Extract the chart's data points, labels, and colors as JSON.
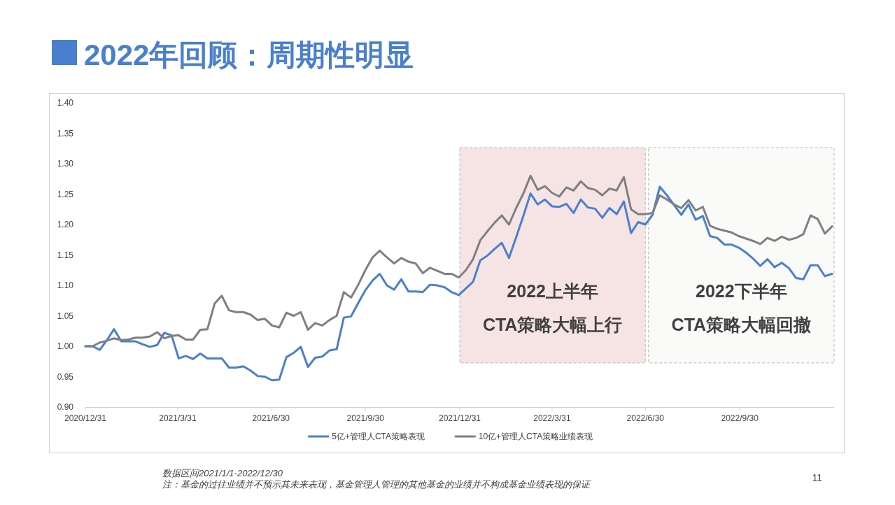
{
  "chart_data": {
    "type": "line",
    "title": "2022年回顾：周期性明显",
    "x": [
      "2020-12-31",
      "2021-01-07",
      "2021-01-14",
      "2021-01-21",
      "2021-01-28",
      "2021-02-04",
      "2021-02-11",
      "2021-02-18",
      "2021-02-25",
      "2021-03-04",
      "2021-03-11",
      "2021-03-18",
      "2021-03-25",
      "2021-04-01",
      "2021-04-08",
      "2021-04-15",
      "2021-04-22",
      "2021-04-29",
      "2021-05-06",
      "2021-05-13",
      "2021-05-20",
      "2021-05-27",
      "2021-06-03",
      "2021-06-10",
      "2021-06-17",
      "2021-06-24",
      "2021-07-01",
      "2021-07-08",
      "2021-07-15",
      "2021-07-22",
      "2021-07-29",
      "2021-08-05",
      "2021-08-12",
      "2021-08-19",
      "2021-08-26",
      "2021-09-02",
      "2021-09-09",
      "2021-09-16",
      "2021-09-23",
      "2021-09-30",
      "2021-10-07",
      "2021-10-14",
      "2021-10-21",
      "2021-10-28",
      "2021-11-04",
      "2021-11-11",
      "2021-11-18",
      "2021-11-25",
      "2021-12-02",
      "2021-12-09",
      "2021-12-16",
      "2021-12-23",
      "2021-12-30",
      "2022-01-06",
      "2022-01-13",
      "2022-01-20",
      "2022-01-27",
      "2022-02-03",
      "2022-02-10",
      "2022-02-17",
      "2022-02-24",
      "2022-03-03",
      "2022-03-10",
      "2022-03-17",
      "2022-03-24",
      "2022-03-31",
      "2022-04-07",
      "2022-04-14",
      "2022-04-21",
      "2022-04-28",
      "2022-05-05",
      "2022-05-12",
      "2022-05-19",
      "2022-05-26",
      "2022-06-02",
      "2022-06-09",
      "2022-06-16",
      "2022-06-23",
      "2022-06-30",
      "2022-07-07",
      "2022-07-14",
      "2022-07-21",
      "2022-07-28",
      "2022-08-04",
      "2022-08-11",
      "2022-08-18",
      "2022-08-25",
      "2022-09-01",
      "2022-09-08",
      "2022-09-15",
      "2022-09-22",
      "2022-09-29",
      "2022-10-06",
      "2022-10-13",
      "2022-10-20",
      "2022-10-27",
      "2022-11-03",
      "2022-11-10",
      "2022-11-17",
      "2022-11-24",
      "2022-12-01",
      "2022-12-08",
      "2022-12-15",
      "2022-12-22",
      "2022-12-29"
    ],
    "series": [
      {
        "name": "5亿+管理人CTA策略表现",
        "color": "#4a7fd0",
        "values": [
          1.0,
          1.0,
          0.994,
          1.01,
          1.028,
          1.008,
          1.008,
          1.008,
          1.003,
          0.999,
          1.002,
          1.022,
          1.018,
          0.98,
          0.984,
          0.979,
          0.988,
          0.98,
          0.98,
          0.98,
          0.965,
          0.965,
          0.967,
          0.96,
          0.951,
          0.95,
          0.944,
          0.945,
          0.982,
          0.989,
          0.999,
          0.966,
          0.981,
          0.983,
          0.993,
          0.995,
          1.047,
          1.049,
          1.071,
          1.092,
          1.108,
          1.119,
          1.1,
          1.093,
          1.11,
          1.09,
          1.09,
          1.089,
          1.101,
          1.1,
          1.097,
          1.089,
          1.084,
          1.095,
          1.106,
          1.141,
          1.149,
          1.16,
          1.17,
          1.145,
          1.179,
          1.214,
          1.251,
          1.233,
          1.241,
          1.23,
          1.229,
          1.234,
          1.219,
          1.241,
          1.228,
          1.226,
          1.211,
          1.227,
          1.217,
          1.238,
          1.186,
          1.204,
          1.2,
          1.216,
          1.262,
          1.248,
          1.232,
          1.216,
          1.233,
          1.208,
          1.214,
          1.181,
          1.178,
          1.167,
          1.167,
          1.162,
          1.154,
          1.144,
          1.132,
          1.143,
          1.13,
          1.137,
          1.128,
          1.112,
          1.11,
          1.133,
          1.133,
          1.115,
          1.119
        ]
      },
      {
        "name": "10亿+管理人CTA策略业绩表现",
        "color": "#7f7f7f",
        "values": [
          1.0,
          1.0,
          1.006,
          1.009,
          1.013,
          1.01,
          1.011,
          1.014,
          1.014,
          1.016,
          1.023,
          1.013,
          1.017,
          1.018,
          1.011,
          1.011,
          1.027,
          1.028,
          1.07,
          1.083,
          1.059,
          1.056,
          1.056,
          1.052,
          1.043,
          1.045,
          1.034,
          1.031,
          1.055,
          1.05,
          1.056,
          1.027,
          1.038,
          1.034,
          1.043,
          1.05,
          1.089,
          1.08,
          1.101,
          1.125,
          1.146,
          1.157,
          1.146,
          1.136,
          1.145,
          1.139,
          1.136,
          1.12,
          1.129,
          1.124,
          1.119,
          1.119,
          1.113,
          1.125,
          1.143,
          1.174,
          1.189,
          1.203,
          1.215,
          1.2,
          1.227,
          1.251,
          1.28,
          1.257,
          1.263,
          1.252,
          1.246,
          1.261,
          1.256,
          1.271,
          1.26,
          1.257,
          1.248,
          1.259,
          1.256,
          1.278,
          1.225,
          1.217,
          1.217,
          1.219,
          1.248,
          1.241,
          1.233,
          1.227,
          1.24,
          1.223,
          1.229,
          1.198,
          1.193,
          1.19,
          1.187,
          1.181,
          1.177,
          1.173,
          1.168,
          1.178,
          1.173,
          1.18,
          1.175,
          1.178,
          1.184,
          1.215,
          1.209,
          1.185,
          1.197
        ]
      }
    ],
    "xlim": [
      "2020-12-31",
      "2022-12-31"
    ],
    "xticks": [
      {
        "value": "2020-12-31",
        "label": "2020/12/31"
      },
      {
        "value": "2021-03-31",
        "label": "2021/3/31"
      },
      {
        "value": "2021-06-30",
        "label": "2021/6/30"
      },
      {
        "value": "2021-09-30",
        "label": "2021/9/30"
      },
      {
        "value": "2021-12-31",
        "label": "2021/12/31"
      },
      {
        "value": "2022-03-31",
        "label": "2022/3/31"
      },
      {
        "value": "2022-06-30",
        "label": "2022/6/30"
      },
      {
        "value": "2022-09-30",
        "label": "2022/9/30"
      }
    ],
    "ylim": [
      0.9,
      1.4
    ],
    "yticks": [
      {
        "value": 0.9,
        "label": "0.90"
      },
      {
        "value": 0.95,
        "label": "0.95"
      },
      {
        "value": 1.0,
        "label": "1.00"
      },
      {
        "value": 1.05,
        "label": "1.05"
      },
      {
        "value": 1.1,
        "label": "1.10"
      },
      {
        "value": 1.15,
        "label": "1.15"
      },
      {
        "value": 1.2,
        "label": "1.20"
      },
      {
        "value": 1.25,
        "label": "1.25"
      },
      {
        "value": 1.3,
        "label": "1.30"
      },
      {
        "value": 1.35,
        "label": "1.35"
      },
      {
        "value": 1.4,
        "label": "1.40"
      }
    ],
    "bands": [
      {
        "axis": "x",
        "from": "2021-12-31",
        "to": "2022-06-30",
        "label": "2022上半年\nCTA策略大幅上行",
        "color": "#f6e4e4"
      },
      {
        "axis": "x",
        "from": "2022-07-03",
        "to": "2022-12-31",
        "label": "2022下半年\nCTA策略大幅回撤",
        "color": "#fafaf8"
      }
    ],
    "legend": "bottom",
    "annotations": [
      "数据区间2021/1/1-2022/12/30",
      "注：基金的过往业绩并不预示其未来表现，基金管理人管理的其他基金的业绩并不构成基金业绩表现的保证",
      "11"
    ]
  }
}
